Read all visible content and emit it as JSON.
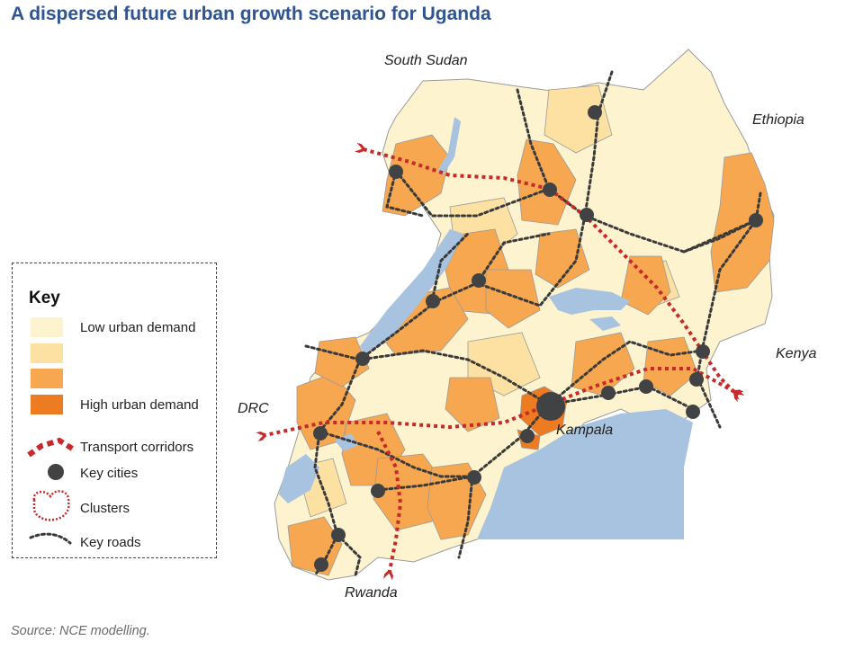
{
  "title": "A dispersed future urban growth scenario for Uganda",
  "labels": {
    "south_sudan": "South Sudan",
    "ethiopia": "Ethiopia",
    "kenya": "Kenya",
    "drc": "DRC",
    "rwanda": "Rwanda",
    "kampala": "Kampala"
  },
  "key": {
    "title": "Key",
    "items": [
      {
        "label": "Low urban demand",
        "color": "#fdf3cf"
      },
      {
        "label": "",
        "color": "#fde1a3"
      },
      {
        "label": "",
        "color": "#f7a74f"
      },
      {
        "label": "High urban demand",
        "color": "#ec7b22"
      },
      {
        "label": "Transport corridors",
        "icon": "transport-corridor-icon"
      },
      {
        "label": "Key cities",
        "icon": "key-city-icon"
      },
      {
        "label": "Clusters",
        "icon": "cluster-icon"
      },
      {
        "label": "Key roads",
        "icon": "key-road-icon"
      }
    ]
  },
  "colors": {
    "water": "#a7c3df",
    "corridor": "#c62a2a",
    "city": "#414244",
    "road": "#3a3a3a",
    "border": "#9a9a9a"
  },
  "source": "Source: NCE modelling."
}
